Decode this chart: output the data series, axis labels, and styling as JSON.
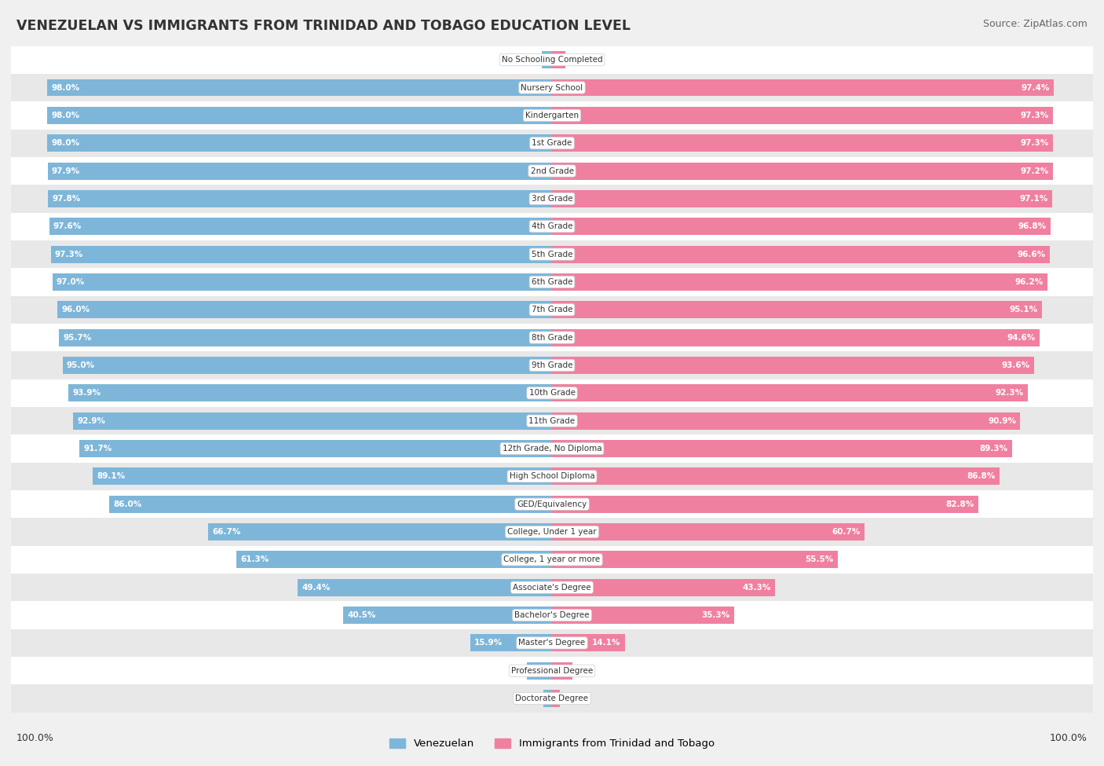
{
  "title": "VENEZUELAN VS IMMIGRANTS FROM TRINIDAD AND TOBAGO EDUCATION LEVEL",
  "source": "Source: ZipAtlas.com",
  "categories": [
    "No Schooling Completed",
    "Nursery School",
    "Kindergarten",
    "1st Grade",
    "2nd Grade",
    "3rd Grade",
    "4th Grade",
    "5th Grade",
    "6th Grade",
    "7th Grade",
    "8th Grade",
    "9th Grade",
    "10th Grade",
    "11th Grade",
    "12th Grade, No Diploma",
    "High School Diploma",
    "GED/Equivalency",
    "College, Under 1 year",
    "College, 1 year or more",
    "Associate's Degree",
    "Bachelor's Degree",
    "Master's Degree",
    "Professional Degree",
    "Doctorate Degree"
  ],
  "venezuelan": [
    2.0,
    98.0,
    98.0,
    98.0,
    97.9,
    97.8,
    97.6,
    97.3,
    97.0,
    96.0,
    95.7,
    95.0,
    93.9,
    92.9,
    91.7,
    89.1,
    86.0,
    66.7,
    61.3,
    49.4,
    40.5,
    15.9,
    4.9,
    1.7
  ],
  "trinidad": [
    2.6,
    97.4,
    97.3,
    97.3,
    97.2,
    97.1,
    96.8,
    96.6,
    96.2,
    95.1,
    94.6,
    93.6,
    92.3,
    90.9,
    89.3,
    86.8,
    82.8,
    60.7,
    55.5,
    43.3,
    35.3,
    14.1,
    3.9,
    1.5
  ],
  "venezuelan_color": "#7EB6D9",
  "trinidad_color": "#F080A0",
  "background_color": "#f0f0f0",
  "row_color_even": "#ffffff",
  "row_color_odd": "#e8e8e8",
  "legend_venezuelan": "Venezuelan",
  "legend_trinidad": "Immigrants from Trinidad and Tobago"
}
